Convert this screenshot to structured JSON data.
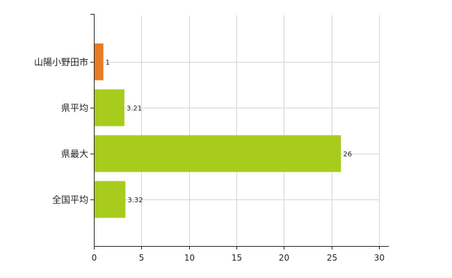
{
  "chart_data": {
    "type": "bar",
    "orientation": "horizontal",
    "categories": [
      "山陽小野田市",
      "県平均",
      "県最大",
      "全国平均"
    ],
    "values": [
      1,
      3.21,
      26,
      3.32
    ],
    "data_labels": [
      "1",
      "3.21",
      "26",
      "3.32"
    ],
    "colors": [
      "#e87b23",
      "#a8cc1c",
      "#a8cc1c",
      "#a8cc1c"
    ],
    "xlim": [
      0,
      30
    ],
    "x_ticks": [
      0,
      5,
      10,
      15,
      20,
      25,
      30
    ],
    "title": "",
    "xlabel": "",
    "ylabel": "",
    "grid": true,
    "legend": "none"
  }
}
